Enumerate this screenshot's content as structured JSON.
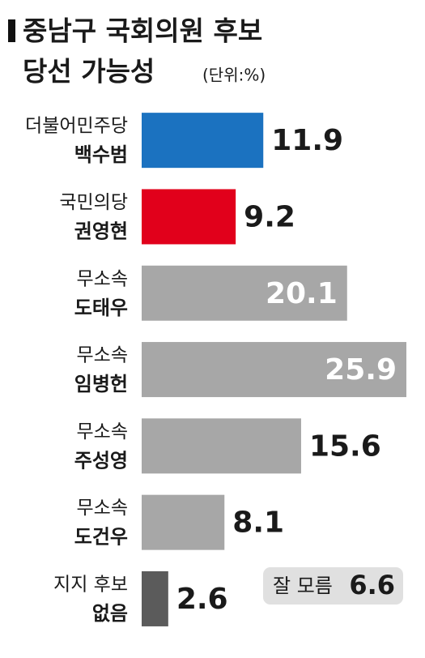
{
  "chart_data": {
    "type": "bar",
    "orientation": "horizontal",
    "title": "중남구 국회의원 후보",
    "subtitle": "당선 가능성",
    "unit_note": "(단위:%)",
    "categories": [
      "더불어민주당",
      "국민의당",
      "무소속",
      "무소속",
      "무소속",
      "무소속",
      "지지 후보"
    ],
    "candidates": [
      "백수범",
      "권영현",
      "도태우",
      "임병헌",
      "주성영",
      "도건우",
      "없음"
    ],
    "values": [
      11.9,
      9.2,
      20.1,
      25.9,
      15.6,
      8.1,
      2.6
    ],
    "colors": [
      "#1b72c0",
      "#e1001b",
      "#a7a7a7",
      "#a7a7a7",
      "#a7a7a7",
      "#a7a7a7",
      "#5b5b5b"
    ],
    "annotation": {
      "label": "잘 모름",
      "value": 6.6
    }
  }
}
